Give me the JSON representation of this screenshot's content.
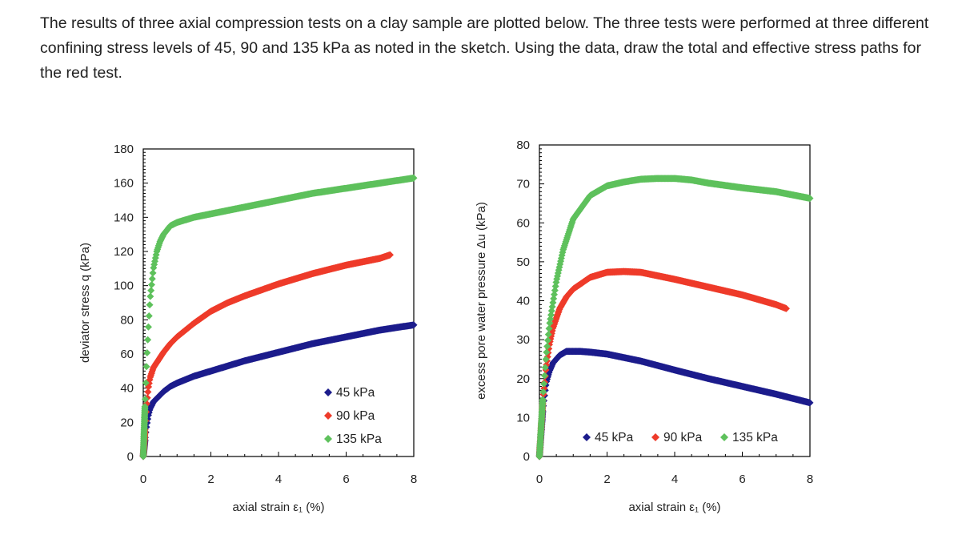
{
  "problem_text": "The results of three axial compression tests on a clay sample are plotted below. The three tests were performed at three different confining stress levels of 45, 90 and 135 kPa as noted in the sketch. Using the data, draw the total and effective stress paths for the red test.",
  "colors": {
    "s45": "#1c1c8c",
    "s90": "#ee3b2a",
    "s135": "#5ec15c",
    "axis": "#000000"
  },
  "chart_data": [
    {
      "type": "scatter",
      "xlabel": "axial strain ε₁ (%)",
      "ylabel": "deviator stress  q  (kPa)",
      "xlim": [
        0,
        8
      ],
      "ylim": [
        0,
        180
      ],
      "xticks": [
        0,
        2,
        4,
        6,
        8
      ],
      "yticks": [
        0,
        20,
        40,
        60,
        80,
        100,
        120,
        140,
        160,
        180
      ],
      "legend_position": "bottom-right",
      "series": [
        {
          "name": "45 kPa",
          "color_key": "s45",
          "x": [
            0,
            0.05,
            0.1,
            0.15,
            0.2,
            0.3,
            0.4,
            0.6,
            0.8,
            1,
            1.5,
            2,
            3,
            4,
            5,
            6,
            7,
            8
          ],
          "y": [
            0,
            10,
            18,
            24,
            28,
            32,
            34,
            38,
            41,
            43,
            47,
            50,
            56,
            61,
            66,
            70,
            74,
            77
          ]
        },
        {
          "name": "90 kPa",
          "color_key": "s90",
          "x": [
            0,
            0.05,
            0.1,
            0.15,
            0.2,
            0.3,
            0.4,
            0.6,
            0.8,
            1,
            1.5,
            2,
            2.5,
            3,
            4,
            5,
            6,
            7,
            7.3
          ],
          "y": [
            0,
            15,
            30,
            40,
            46,
            52,
            55,
            61,
            66,
            70,
            78,
            85,
            90,
            94,
            101,
            107,
            112,
            116,
            118
          ]
        },
        {
          "name": "135 kPa",
          "color_key": "s135",
          "x": [
            0,
            0.05,
            0.1,
            0.15,
            0.2,
            0.3,
            0.4,
            0.5,
            0.6,
            0.8,
            1,
            1.5,
            2,
            3,
            4,
            5,
            6,
            7,
            8
          ],
          "y": [
            0,
            30,
            55,
            75,
            92,
            110,
            120,
            126,
            130,
            135,
            137,
            140,
            142,
            146,
            150,
            154,
            157,
            160,
            163
          ]
        }
      ]
    },
    {
      "type": "scatter",
      "xlabel": "axial strain ε₁ (%)",
      "ylabel": "excess pore water pressure Δu (kPa)",
      "xlim": [
        0,
        8
      ],
      "ylim": [
        0,
        80
      ],
      "xticks": [
        0,
        2,
        4,
        6,
        8
      ],
      "yticks": [
        0,
        10,
        20,
        30,
        40,
        50,
        60,
        70,
        80
      ],
      "legend_position": "bottom-right",
      "series": [
        {
          "name": "45 kPa",
          "color_key": "s45",
          "x": [
            0,
            0.1,
            0.2,
            0.3,
            0.4,
            0.6,
            0.8,
            1,
            1.2,
            1.5,
            2,
            3,
            4,
            5,
            6,
            7,
            8
          ],
          "y": [
            0,
            12,
            19,
            22,
            24,
            26,
            27,
            27,
            27,
            26.8,
            26.3,
            24.5,
            22.2,
            20,
            18,
            16,
            13.8
          ]
        },
        {
          "name": "90 kPa",
          "color_key": "s90",
          "x": [
            0,
            0.1,
            0.2,
            0.3,
            0.4,
            0.6,
            0.8,
            1,
            1.5,
            2,
            2.5,
            3,
            4,
            5,
            6,
            7,
            7.3
          ],
          "y": [
            0,
            14,
            23,
            29,
            33,
            38,
            41,
            43,
            46,
            47.3,
            47.5,
            47.3,
            45.5,
            43.5,
            41.5,
            39,
            38
          ]
        },
        {
          "name": "135 kPa",
          "color_key": "s135",
          "x": [
            0,
            0.1,
            0.2,
            0.3,
            0.5,
            0.7,
            1,
            1.5,
            2,
            2.5,
            3,
            3.5,
            4,
            4.5,
            5,
            6,
            7,
            8
          ],
          "y": [
            0,
            15,
            26,
            34,
            45,
            53,
            61,
            67,
            69.5,
            70.5,
            71.2,
            71.4,
            71.4,
            71,
            70.2,
            69,
            68,
            66.3
          ]
        }
      ]
    }
  ]
}
